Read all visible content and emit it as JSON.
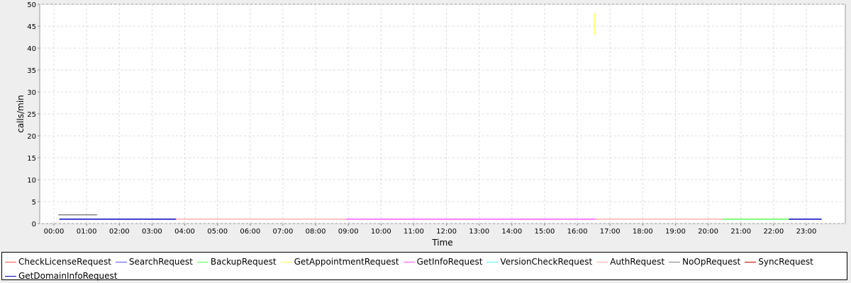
{
  "chart_data": {
    "type": "line",
    "xlabel": "Time",
    "ylabel": "calls/min",
    "ylim": [
      0,
      50
    ],
    "yticks": [
      "0",
      "5",
      "10",
      "15",
      "20",
      "25",
      "30",
      "35",
      "40",
      "45",
      "50"
    ],
    "xticks": [
      "00:00",
      "01:00",
      "02:00",
      "03:00",
      "04:00",
      "05:00",
      "06:00",
      "07:00",
      "08:00",
      "09:00",
      "10:00",
      "11:00",
      "12:00",
      "13:00",
      "14:00",
      "15:00",
      "16:00",
      "17:00",
      "18:00",
      "19:00",
      "20:00",
      "21:00",
      "22:00",
      "23:00"
    ],
    "grid": true,
    "legend_position": "bottom",
    "series": [
      {
        "name": "CheckLicenseRequest",
        "color": "#ff5555",
        "points": []
      },
      {
        "name": "SearchRequest",
        "color": "#5555ff",
        "points": []
      },
      {
        "name": "BackupRequest",
        "color": "#55ff55",
        "points": [
          [
            "20:26",
            1
          ],
          [
            "22:28",
            1
          ]
        ]
      },
      {
        "name": "GetAppointmentRequest",
        "color": "#ffff55",
        "points": [
          [
            "16:32",
            48
          ],
          [
            "16:32",
            43
          ]
        ]
      },
      {
        "name": "GetInfoRequest",
        "color": "#ff55ff",
        "points": [
          [
            "08:56",
            1
          ],
          [
            "16:33",
            1
          ]
        ]
      },
      {
        "name": "VersionCheckRequest",
        "color": "#55ffff",
        "points": []
      },
      {
        "name": "AuthRequest",
        "color": "#ffafaf",
        "points": [
          [
            "03:44",
            1
          ],
          [
            "08:56",
            1
          ],
          [
            "16:33",
            1
          ],
          [
            "20:26",
            1
          ]
        ]
      },
      {
        "name": "NoOpRequest",
        "color": "#808080",
        "points": [
          [
            "00:08",
            2
          ],
          [
            "01:19",
            2
          ]
        ]
      },
      {
        "name": "SyncRequest",
        "color": "#c00000",
        "points": []
      },
      {
        "name": "GetDomainInfoRequest",
        "color": "#0000c0",
        "points": [
          [
            "00:10",
            1
          ],
          [
            "03:44",
            1
          ],
          [
            "22:28",
            1
          ],
          [
            "23:28",
            1
          ]
        ]
      }
    ]
  }
}
